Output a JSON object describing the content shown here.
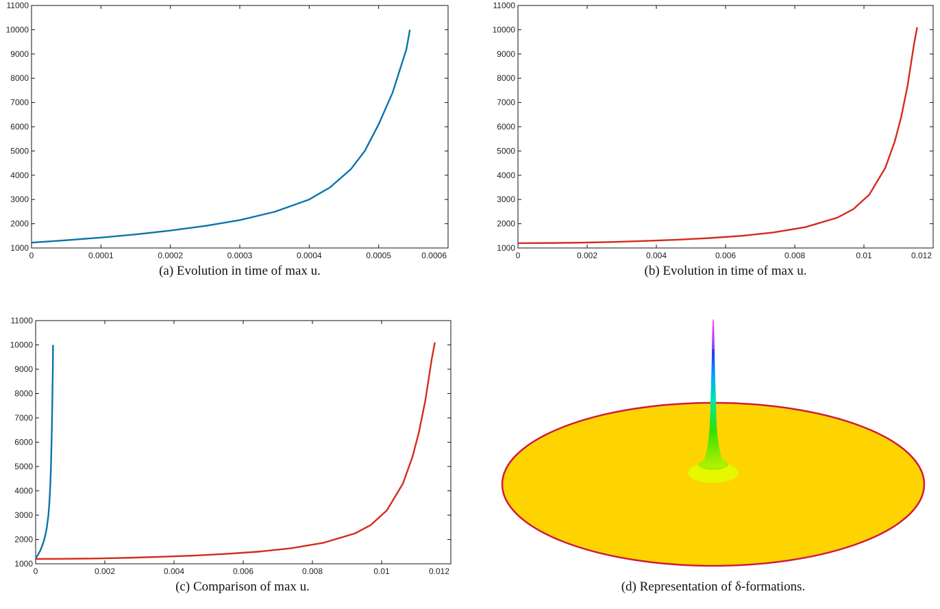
{
  "colors": {
    "blue": "#0a74a8",
    "red": "#d52a1c",
    "disk": "#fdd400",
    "rim": "#cf1b3c"
  },
  "chart_data": [
    {
      "type": "line",
      "caption": "(a)  Evolution in time of max u.",
      "xlim": [
        0,
        0.0006
      ],
      "ylim": [
        1000,
        11000
      ],
      "xticks": [
        "0",
        "0.0001",
        "0.0002",
        "0.0003",
        "0.0004",
        "0.0005",
        "0.0006"
      ],
      "yticks": [
        "1000",
        "2000",
        "3000",
        "4000",
        "5000",
        "6000",
        "7000",
        "8000",
        "9000",
        "10000",
        "11000"
      ],
      "series": [
        {
          "color": "#0a74a8",
          "x": [
            0,
            5e-05,
            0.0001,
            0.00015,
            0.0002,
            0.00025,
            0.0003,
            0.00035,
            0.0004,
            0.00043,
            0.00046,
            0.00048,
            0.0005,
            0.00052,
            0.00054,
            0.000545
          ],
          "y": [
            1220,
            1320,
            1430,
            1560,
            1720,
            1910,
            2150,
            2490,
            3000,
            3500,
            4250,
            5000,
            6100,
            7400,
            9200,
            10000
          ]
        }
      ]
    },
    {
      "type": "line",
      "caption": "(b)  Evolution in time of max u.",
      "xlim": [
        0,
        0.013
      ],
      "ylim": [
        1000,
        11000
      ],
      "xticks": [
        "0",
        "0.002",
        "0.004",
        "0.006",
        "0.008",
        "0.01",
        "0.012"
      ],
      "yticks": [
        "1000",
        "2000",
        "3000",
        "4000",
        "5000",
        "6000",
        "7000",
        "8000",
        "9000",
        "10000",
        "11000"
      ],
      "series": [
        {
          "color": "#d52a1c",
          "x": [
            0,
            0.001,
            0.002,
            0.003,
            0.004,
            0.005,
            0.006,
            0.007,
            0.008,
            0.009,
            0.01,
            0.0105,
            0.011,
            0.0115,
            0.0118,
            0.012,
            0.0122,
            0.0124,
            0.0125
          ],
          "y": [
            1200,
            1205,
            1220,
            1250,
            1290,
            1340,
            1410,
            1500,
            1640,
            1860,
            2250,
            2600,
            3200,
            4300,
            5400,
            6400,
            7700,
            9400,
            10100
          ]
        }
      ]
    },
    {
      "type": "line",
      "caption": "(c)  Comparison of max u.",
      "xlim": [
        0,
        0.013
      ],
      "ylim": [
        1000,
        11000
      ],
      "xticks": [
        "0",
        "0.002",
        "0.004",
        "0.006",
        "0.008",
        "0.01",
        "0.012"
      ],
      "yticks": [
        "1000",
        "2000",
        "3000",
        "4000",
        "5000",
        "6000",
        "7000",
        "8000",
        "9000",
        "10000",
        "11000"
      ],
      "series": [
        {
          "color": "#0a74a8",
          "x": [
            0,
            5e-05,
            0.0001,
            0.00015,
            0.0002,
            0.00025,
            0.0003,
            0.00035,
            0.0004,
            0.00043,
            0.00046,
            0.00048,
            0.0005,
            0.00052,
            0.00054,
            0.000545
          ],
          "y": [
            1220,
            1320,
            1430,
            1560,
            1720,
            1910,
            2150,
            2490,
            3000,
            3500,
            4250,
            5000,
            6100,
            7400,
            9200,
            10000
          ]
        },
        {
          "color": "#d52a1c",
          "x": [
            0,
            0.001,
            0.002,
            0.003,
            0.004,
            0.005,
            0.006,
            0.007,
            0.008,
            0.009,
            0.01,
            0.0105,
            0.011,
            0.0115,
            0.0118,
            0.012,
            0.0122,
            0.0124,
            0.0125
          ],
          "y": [
            1200,
            1205,
            1220,
            1250,
            1290,
            1340,
            1410,
            1500,
            1640,
            1860,
            2250,
            2600,
            3200,
            4300,
            5400,
            6400,
            7700,
            9400,
            10100
          ]
        }
      ]
    }
  ],
  "panel_d": {
    "caption": "(d)  Representation of δ-formations."
  }
}
